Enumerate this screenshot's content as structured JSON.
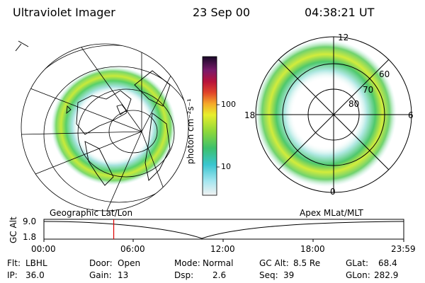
{
  "header": {
    "instrument": "Ultraviolet Imager",
    "date": "23 Sep 00",
    "time": "04:38:21 UT"
  },
  "colorbar": {
    "unit_label": "photon cm⁻²s⁻¹",
    "ticks": [
      "100",
      "10"
    ]
  },
  "polar_plot": {
    "mlt_labels": [
      "12",
      "18",
      "6",
      "0"
    ],
    "mlat_labels": [
      "60",
      "70",
      "80"
    ]
  },
  "map_labels": {
    "left": "Geographic Lat/Lon",
    "right": "Apex MLat/MLT"
  },
  "altitude_plot": {
    "ylabel": "GC Alt",
    "yticks": [
      "9.0",
      "1.8"
    ],
    "xticks": [
      "00:00",
      "06:00",
      "12:00",
      "18:00",
      "23:59"
    ],
    "current_time_fraction": 0.194
  },
  "params": {
    "flt_label": "Flt:",
    "flt_value": "LBHL",
    "ip_label": "IP:",
    "ip_value": "36.0",
    "door_label": "Door:",
    "door_value": "Open",
    "gain_label": "Gain:",
    "gain_value": "13",
    "mode_label": "Mode:",
    "mode_value": "Normal",
    "dsp_label": "Dsp:",
    "dsp_value": "2.6",
    "gcalt_label": "GC Alt:",
    "gcalt_value": "8.5 Re",
    "seq_label": "Seq:",
    "seq_value": "39",
    "glat_label": "GLat:",
    "glat_value": "68.4",
    "glon_label": "GLon:",
    "glon_value": "282.9"
  },
  "colors": {
    "marker": "#dd0000"
  }
}
